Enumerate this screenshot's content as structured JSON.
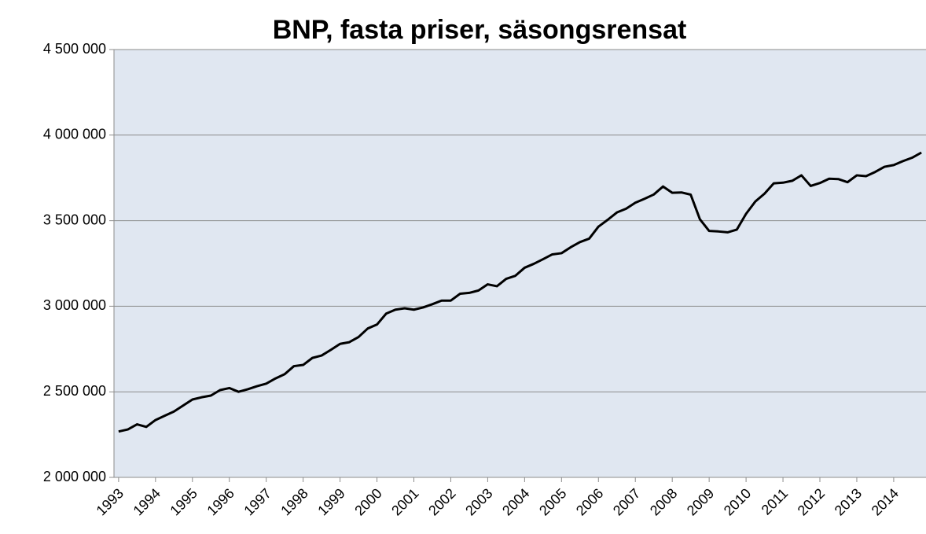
{
  "chart_data": {
    "type": "line",
    "title": "BNP, fasta priser, säsongsrensat",
    "categories": [
      "1993",
      null,
      null,
      null,
      "1994",
      null,
      null,
      null,
      "1995",
      null,
      null,
      null,
      "1996",
      null,
      null,
      null,
      "1997",
      null,
      null,
      null,
      "1998",
      null,
      null,
      null,
      "1999",
      null,
      null,
      null,
      "2000",
      null,
      null,
      null,
      "2001",
      null,
      null,
      null,
      "2002",
      null,
      null,
      null,
      "2003",
      null,
      null,
      null,
      "2004",
      null,
      null,
      null,
      "2005",
      null,
      null,
      null,
      "2006",
      null,
      null,
      null,
      "2007",
      null,
      null,
      null,
      "2008",
      null,
      null,
      null,
      "2009",
      null,
      null,
      null,
      "2010",
      null,
      null,
      null,
      "2011",
      null,
      null,
      null,
      "2012",
      null,
      null,
      null,
      "2013",
      null,
      null,
      null,
      "2014",
      null,
      null,
      null
    ],
    "values": [
      2268000,
      2280000,
      2310000,
      2295000,
      2335000,
      2360000,
      2385000,
      2420000,
      2455000,
      2468000,
      2478000,
      2510000,
      2522000,
      2500000,
      2515000,
      2533000,
      2548000,
      2578000,
      2603000,
      2650000,
      2657000,
      2698000,
      2712000,
      2745000,
      2780000,
      2790000,
      2820000,
      2870000,
      2893000,
      2957000,
      2980000,
      2988000,
      2980000,
      2993000,
      3012000,
      3033000,
      3033000,
      3073000,
      3078000,
      3092000,
      3128000,
      3117000,
      3160000,
      3178000,
      3225000,
      3248000,
      3275000,
      3303000,
      3310000,
      3345000,
      3375000,
      3395000,
      3465000,
      3505000,
      3548000,
      3570000,
      3605000,
      3628000,
      3653000,
      3700000,
      3663000,
      3665000,
      3652000,
      3508000,
      3440000,
      3437000,
      3432000,
      3448000,
      3540000,
      3612000,
      3658000,
      3718000,
      3722000,
      3733000,
      3765000,
      3703000,
      3720000,
      3745000,
      3743000,
      3725000,
      3765000,
      3760000,
      3785000,
      3815000,
      3825000,
      3848000,
      3868000,
      3898000
    ],
    "color": "#000000",
    "ylim": [
      2000000,
      4500000
    ],
    "yticks": [
      {
        "value": 2000000,
        "label": "2 000 000"
      },
      {
        "value": 2500000,
        "label": "2 500 000"
      },
      {
        "value": 3000000,
        "label": "3 000 000"
      },
      {
        "value": 3500000,
        "label": "3 500 000"
      },
      {
        "value": 4000000,
        "label": "4 000 000"
      },
      {
        "value": 4500000,
        "label": "4 500 000"
      }
    ],
    "grid": true
  }
}
